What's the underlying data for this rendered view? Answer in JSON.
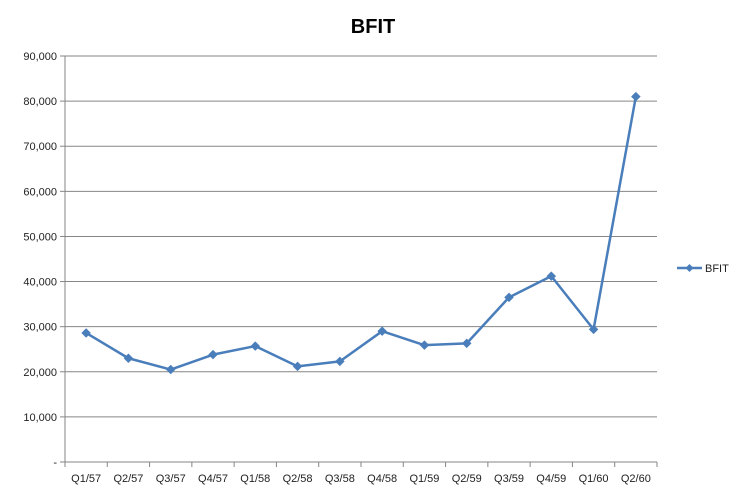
{
  "chart_data": {
    "type": "line",
    "title": "BFIT",
    "xlabel": "",
    "ylabel": "",
    "categories": [
      "Q1/57",
      "Q2/57",
      "Q3/57",
      "Q4/57",
      "Q1/58",
      "Q2/58",
      "Q3/58",
      "Q4/58",
      "Q1/59",
      "Q2/59",
      "Q3/59",
      "Q4/59",
      "Q1/60",
      "Q2/60"
    ],
    "series": [
      {
        "name": "BFIT",
        "values": [
          28600,
          23000,
          20500,
          23800,
          25700,
          21200,
          22300,
          29000,
          25900,
          26300,
          36500,
          41200,
          29400,
          81000
        ],
        "color": "#4a7ebb",
        "marker": "diamond"
      }
    ],
    "ylim": [
      0,
      90000
    ],
    "yticks": [
      "-",
      "10,000",
      "20,000",
      "30,000",
      "40,000",
      "50,000",
      "60,000",
      "70,000",
      "80,000",
      "90,000"
    ],
    "grid": true,
    "legend": "right"
  }
}
